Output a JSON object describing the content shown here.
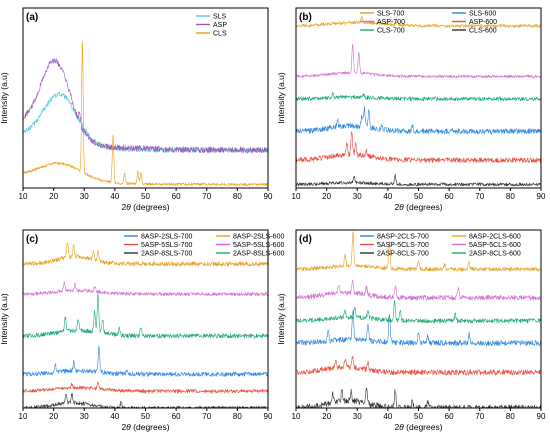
{
  "figure": {
    "ylabel": "Intensity (a.u)",
    "xlabel_prefix": "2",
    "xlabel_theta": "θ",
    "xlabel_suffix": " (degrees)"
  },
  "chart_data": [
    {
      "type": "line",
      "panel": "(a)",
      "xlabel": "2θ (degrees)",
      "ylabel": "Intensity (a.u)",
      "xlim": [
        10,
        90
      ],
      "xticks": [
        10,
        20,
        30,
        40,
        50,
        60,
        70,
        80,
        90
      ],
      "ylim": [
        0,
        1
      ],
      "ytick_labels_shown": false,
      "legend_position": "top-right",
      "legend_columns": 1,
      "series": [
        {
          "name": "SLS",
          "color": "#5BC8D8",
          "order": 1,
          "offset": 0.21,
          "baseline": 0.0,
          "amorphous_height": 0.28,
          "hump_center": 22,
          "hump_width": 8,
          "tail": 0.14,
          "noise": 0.03,
          "peaks": []
        },
        {
          "name": "ASP",
          "color": "#9B59B6",
          "order": 2,
          "offset": 0.21,
          "baseline": 0.0,
          "amorphous_height": 0.43,
          "hump_center": 20.5,
          "hump_width": 7,
          "tail": 0.28,
          "noise": 0.035,
          "peaks": [
            [
              28.5,
              0.06
            ]
          ]
        },
        {
          "name": "CLS",
          "color": "#F39C12",
          "order": 3,
          "offset": 0.02,
          "baseline": 0.0,
          "amorphous_height": 0.1,
          "hump_center": 22,
          "hump_width": 10,
          "tail": 0.08,
          "noise": 0.015,
          "peaks": [
            [
              29.4,
              0.74
            ],
            [
              39.4,
              0.26
            ],
            [
              43.2,
              0.06
            ],
            [
              47.5,
              0.07
            ],
            [
              48.5,
              0.06
            ]
          ]
        }
      ]
    },
    {
      "type": "line",
      "panel": "(b)",
      "xlabel": "2θ (degrees)",
      "ylabel": "Intensity (a.u)",
      "xlim": [
        10,
        90
      ],
      "xticks": [
        10,
        20,
        30,
        40,
        50,
        60,
        70,
        80,
        90
      ],
      "ylim": [
        0,
        1
      ],
      "ytick_labels_shown": false,
      "legend_position": "top-right",
      "legend_columns": 2,
      "series": [
        {
          "name": "SLS-700",
          "color": "#E6A11F",
          "order": 1,
          "offset": 0.9,
          "baseline": 0.0,
          "amorphous_height": 0.02,
          "hump_center": 30,
          "hump_width": 12,
          "tail": 0.0,
          "noise": 0.018,
          "peaks": [
            [
              31.5,
              0.03
            ],
            [
              43,
              0.02
            ]
          ]
        },
        {
          "name": "SLS-600",
          "color": "#2E86DE",
          "order": 2,
          "offset": 0.315,
          "baseline": 0.0,
          "amorphous_height": 0.03,
          "hump_center": 28,
          "hump_width": 10,
          "tail": 0.0,
          "noise": 0.03,
          "peaks": [
            [
              23.5,
              0.04
            ],
            [
              31.5,
              0.06
            ],
            [
              32.3,
              0.1
            ],
            [
              33.8,
              0.09
            ],
            [
              38,
              0.03
            ],
            [
              48,
              0.03
            ]
          ]
        },
        {
          "name": "ASP-700",
          "color": "#D46BD4",
          "order": 3,
          "offset": 0.62,
          "baseline": 0.0,
          "amorphous_height": 0.02,
          "hump_center": 28,
          "hump_width": 10,
          "tail": 0.0,
          "noise": 0.015,
          "peaks": [
            [
              28.5,
              0.16
            ],
            [
              30.5,
              0.11
            ]
          ]
        },
        {
          "name": "ASP-600",
          "color": "#E74C3C",
          "order": 4,
          "offset": 0.155,
          "baseline": 0.0,
          "amorphous_height": 0.03,
          "hump_center": 28,
          "hump_width": 10,
          "tail": 0.0,
          "noise": 0.028,
          "peaks": [
            [
              26.6,
              0.07
            ],
            [
              28.2,
              0.13
            ],
            [
              29.5,
              0.06
            ],
            [
              33,
              0.03
            ]
          ]
        },
        {
          "name": "CLS-700",
          "color": "#1AAA6E",
          "order": 5,
          "offset": 0.495,
          "baseline": 0.0,
          "amorphous_height": 0.01,
          "hump_center": 28,
          "hump_width": 10,
          "tail": 0.0,
          "noise": 0.022,
          "peaks": [
            [
              22,
              0.02
            ],
            [
              32,
              0.02
            ]
          ]
        },
        {
          "name": "CLS-600",
          "color": "#333333",
          "order": 6,
          "offset": 0.02,
          "baseline": 0.0,
          "amorphous_height": 0.01,
          "hump_center": 28,
          "hump_width": 10,
          "tail": 0.0,
          "noise": 0.018,
          "peaks": [
            [
              29,
              0.03
            ],
            [
              42.4,
              0.05
            ]
          ]
        }
      ]
    },
    {
      "type": "line",
      "panel": "(c)",
      "xlabel": "2θ (degrees)",
      "ylabel": "Intensity (a.u)",
      "xlim": [
        10,
        90
      ],
      "xticks": [
        10,
        20,
        30,
        40,
        50,
        60,
        70,
        80,
        90
      ],
      "ylim": [
        0,
        1
      ],
      "ytick_labels_shown": false,
      "legend_position": "top-right",
      "legend_columns": 2,
      "series": [
        {
          "name": "8ASP-2SLS-700",
          "color": "#2E86DE",
          "order": 1,
          "offset": 0.19,
          "baseline": 0.0,
          "amorphous_height": 0.02,
          "hump_center": 28,
          "hump_width": 10,
          "tail": 0.0,
          "noise": 0.025,
          "peaks": [
            [
              20.5,
              0.05
            ],
            [
              26.6,
              0.05
            ],
            [
              34.8,
              0.14
            ],
            [
              44,
              0.03
            ]
          ]
        },
        {
          "name": "8ASP-2SLS-600",
          "color": "#E6A11F",
          "order": 2,
          "offset": 0.81,
          "baseline": 0.0,
          "amorphous_height": 0.04,
          "hump_center": 27,
          "hump_width": 8,
          "tail": 0.0,
          "noise": 0.025,
          "peaks": [
            [
              24.5,
              0.09
            ],
            [
              26.5,
              0.07
            ],
            [
              33,
              0.05
            ],
            [
              34.5,
              0.06
            ]
          ]
        },
        {
          "name": "5ASP-5SLS-700",
          "color": "#E74C3C",
          "order": 3,
          "offset": 0.095,
          "baseline": 0.0,
          "amorphous_height": 0.02,
          "hump_center": 28,
          "hump_width": 10,
          "tail": 0.0,
          "noise": 0.02,
          "peaks": [
            [
              26,
              0.02
            ],
            [
              34.5,
              0.04
            ]
          ]
        },
        {
          "name": "5ASP-5SLS-600",
          "color": "#D46BD4",
          "order": 4,
          "offset": 0.64,
          "baseline": 0.0,
          "amorphous_height": 0.02,
          "hump_center": 28,
          "hump_width": 10,
          "tail": 0.0,
          "noise": 0.02,
          "peaks": [
            [
              23.5,
              0.05
            ],
            [
              27,
              0.04
            ],
            [
              33.5,
              0.03
            ]
          ]
        },
        {
          "name": "2ASP-8SLS-700",
          "color": "#333333",
          "order": 5,
          "offset": 0.0,
          "baseline": 0.0,
          "amorphous_height": 0.03,
          "hump_center": 26,
          "hump_width": 8,
          "tail": 0.0,
          "noise": 0.022,
          "peaks": [
            [
              24,
              0.06
            ],
            [
              26,
              0.05
            ],
            [
              42,
              0.03
            ]
          ]
        },
        {
          "name": "2ASP-8SLS-600",
          "color": "#1AAA6E",
          "order": 6,
          "offset": 0.405,
          "baseline": 0.0,
          "amorphous_height": 0.03,
          "hump_center": 28,
          "hump_width": 10,
          "tail": 0.0,
          "noise": 0.025,
          "peaks": [
            [
              23.8,
              0.08
            ],
            [
              28,
              0.06
            ],
            [
              33.4,
              0.12
            ],
            [
              34.5,
              0.22
            ],
            [
              36,
              0.08
            ],
            [
              41.5,
              0.04
            ],
            [
              48.5,
              0.05
            ]
          ]
        }
      ]
    },
    {
      "type": "line",
      "panel": "(d)",
      "xlabel": "2θ (degrees)",
      "ylabel": "Intensity (a.u)",
      "xlim": [
        10,
        90
      ],
      "xticks": [
        10,
        20,
        30,
        40,
        50,
        60,
        70,
        80,
        90
      ],
      "ylim": [
        0,
        1
      ],
      "ytick_labels_shown": false,
      "legend_position": "top-right",
      "legend_columns": 2,
      "series": [
        {
          "name": "8ASP-2CLS-700",
          "color": "#2E86DE",
          "order": 1,
          "offset": 0.365,
          "baseline": 0.0,
          "amorphous_height": 0.02,
          "hump_center": 28,
          "hump_width": 10,
          "tail": 0.0,
          "noise": 0.03,
          "peaks": [
            [
              20.5,
              0.05
            ],
            [
              28.6,
              0.17
            ],
            [
              33.5,
              0.08
            ],
            [
              40.5,
              0.15
            ],
            [
              50,
              0.06
            ],
            [
              53,
              0.04
            ],
            [
              66.5,
              0.05
            ]
          ]
        },
        {
          "name": "8ASP-2CLS-600",
          "color": "#E6A11F",
          "order": 2,
          "offset": 0.78,
          "baseline": 0.0,
          "amorphous_height": 0.02,
          "hump_center": 28,
          "hump_width": 10,
          "tail": 0.0,
          "noise": 0.022,
          "peaks": [
            [
              26,
              0.06
            ],
            [
              28.6,
              0.19
            ],
            [
              40.5,
              0.15
            ],
            [
              50,
              0.05
            ],
            [
              58.5,
              0.03
            ],
            [
              66.5,
              0.04
            ]
          ]
        },
        {
          "name": "5ASP-5CLS-700",
          "color": "#E74C3C",
          "order": 3,
          "offset": 0.2,
          "baseline": 0.0,
          "amorphous_height": 0.03,
          "hump_center": 26,
          "hump_width": 9,
          "tail": 0.0,
          "noise": 0.03,
          "peaks": [
            [
              23,
              0.04
            ],
            [
              26,
              0.05
            ],
            [
              28.5,
              0.06
            ],
            [
              33.5,
              0.04
            ]
          ]
        },
        {
          "name": "5ASP-5CLS-600",
          "color": "#D46BD4",
          "order": 4,
          "offset": 0.62,
          "baseline": 0.0,
          "amorphous_height": 0.03,
          "hump_center": 26,
          "hump_width": 9,
          "tail": 0.0,
          "noise": 0.028,
          "peaks": [
            [
              24,
              0.05
            ],
            [
              28.5,
              0.06
            ],
            [
              33,
              0.04
            ],
            [
              42.5,
              0.06
            ],
            [
              63,
              0.05
            ]
          ]
        },
        {
          "name": "2ASP-8CLS-700",
          "color": "#333333",
          "order": 5,
          "offset": 0.0,
          "baseline": 0.0,
          "amorphous_height": 0.04,
          "hump_center": 27,
          "hump_width": 9,
          "tail": 0.0,
          "noise": 0.035,
          "peaks": [
            [
              22,
              0.05
            ],
            [
              25,
              0.06
            ],
            [
              28,
              0.05
            ],
            [
              33,
              0.08
            ],
            [
              42.4,
              0.1
            ],
            [
              48,
              0.04
            ],
            [
              53,
              0.04
            ]
          ]
        },
        {
          "name": "2ASP-8CLS-600",
          "color": "#1AAA6E",
          "order": 6,
          "offset": 0.49,
          "baseline": 0.0,
          "amorphous_height": 0.02,
          "hump_center": 28,
          "hump_width": 10,
          "tail": 0.0,
          "noise": 0.025,
          "peaks": [
            [
              26,
              0.04
            ],
            [
              29.2,
              0.06
            ],
            [
              33.5,
              0.05
            ],
            [
              42.2,
              0.11
            ],
            [
              44,
              0.05
            ],
            [
              62,
              0.04
            ]
          ]
        }
      ]
    }
  ]
}
